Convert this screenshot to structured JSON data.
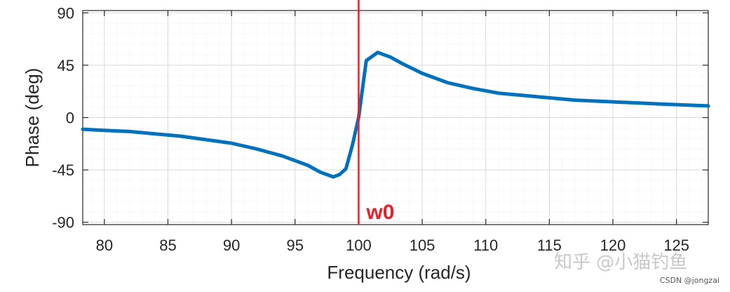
{
  "chart_data": {
    "type": "line",
    "title": "",
    "xlabel": "Frequency  (rad/s)",
    "ylabel": "Phase (deg)",
    "xlim": [
      78.3,
      127.5
    ],
    "ylim": [
      -92,
      92
    ],
    "xticks": [
      80,
      85,
      90,
      95,
      100,
      105,
      110,
      115,
      120,
      125
    ],
    "yticks": [
      -90,
      -45,
      0,
      45,
      90
    ],
    "grid": true,
    "minor_grid": true,
    "series": [
      {
        "name": "",
        "color": "#0072bd",
        "x": [
          78.3,
          80,
          82,
          84,
          86,
          88,
          90,
          92,
          94,
          96,
          97,
          98,
          98.5,
          99,
          99.5,
          100,
          100.6,
          101.5,
          102.5,
          103.5,
          105,
          107,
          109,
          111,
          114,
          117,
          120,
          124,
          127.5
        ],
        "y": [
          -10,
          -11,
          -12,
          -14,
          -16,
          -19,
          -22,
          -27,
          -33,
          -41,
          -47,
          -51,
          -49,
          -44,
          -24,
          0,
          49,
          56,
          52,
          46,
          38,
          30,
          25,
          21,
          18,
          15,
          13.5,
          11.5,
          10
        ]
      }
    ],
    "annotations": [
      {
        "type": "vline",
        "x": 100,
        "color": "#e8202a",
        "label": "w0"
      }
    ]
  },
  "watermark": {
    "main": "知乎 @小猫钓鱼",
    "sub": "CSDN @jongzai"
  }
}
